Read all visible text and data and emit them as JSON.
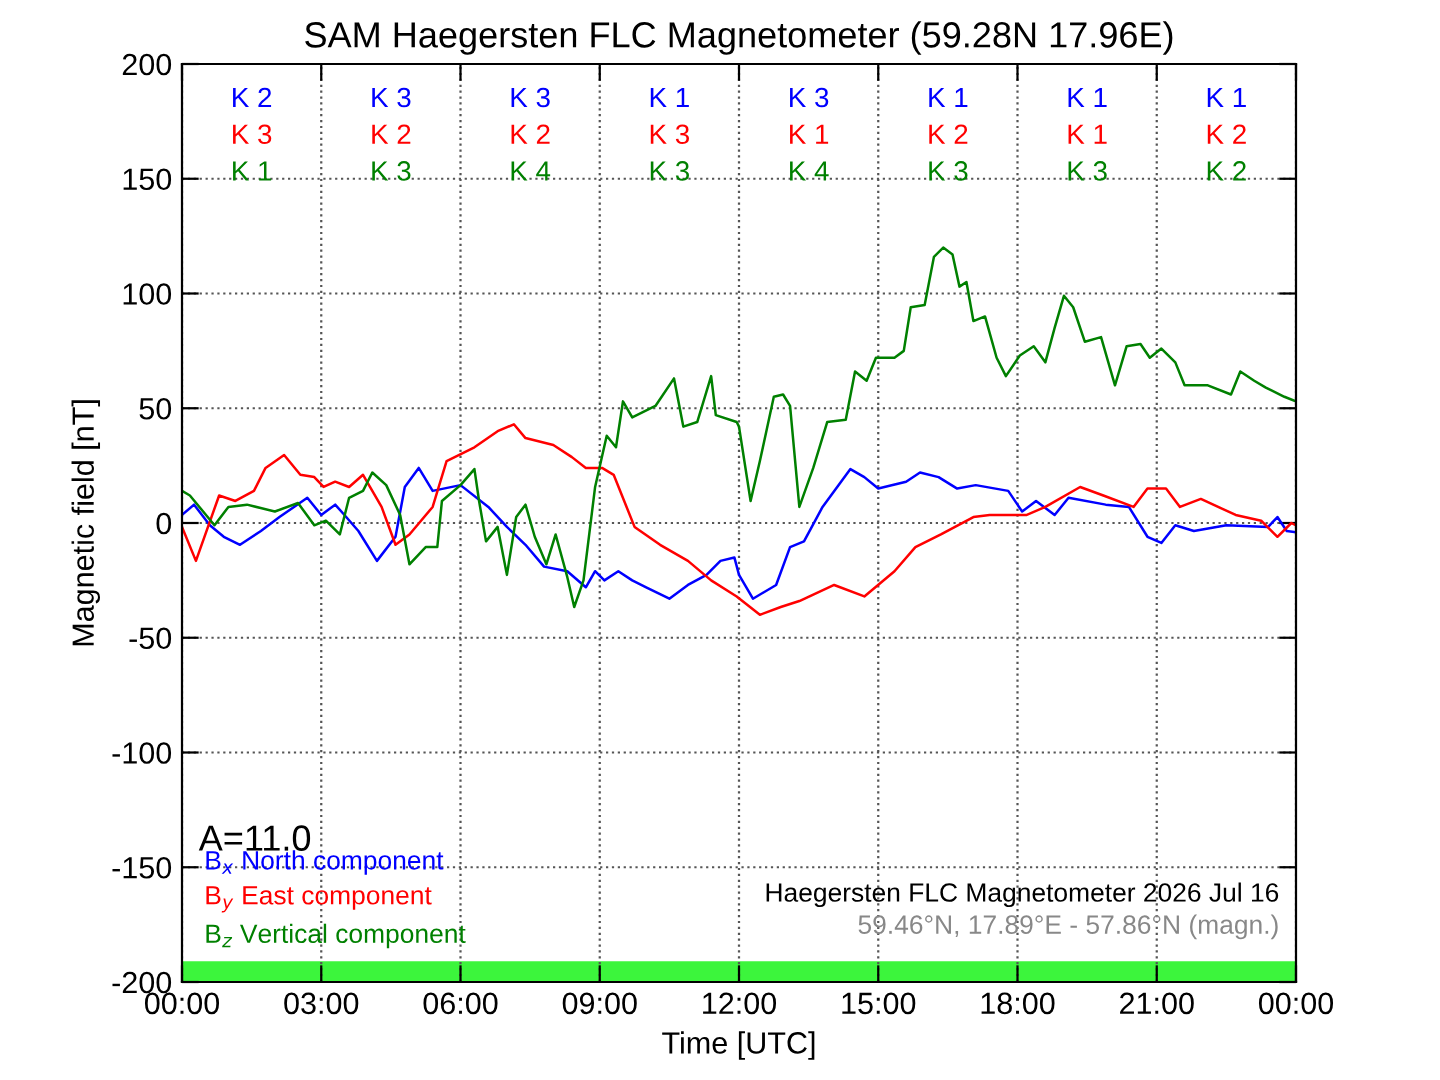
{
  "chart_data": {
    "type": "line",
    "title": "SAM Haegersten FLC Magnetometer (59.28N 17.96E)",
    "xlabel": "Time [UTC]",
    "ylabel": "Magnetic field [nT]",
    "xlim": [
      0,
      24
    ],
    "xticks": [
      {
        "value": 0,
        "label": "00:00"
      },
      {
        "value": 3,
        "label": "03:00"
      },
      {
        "value": 6,
        "label": "06:00"
      },
      {
        "value": 9,
        "label": "09:00"
      },
      {
        "value": 12,
        "label": "12:00"
      },
      {
        "value": 15,
        "label": "15:00"
      },
      {
        "value": 18,
        "label": "18:00"
      },
      {
        "value": 21,
        "label": "21:00"
      },
      {
        "value": 24,
        "label": "00:00"
      }
    ],
    "ylim": [
      -200,
      200
    ],
    "yticks": [
      -200,
      -150,
      -100,
      -50,
      0,
      50,
      100,
      150,
      200
    ],
    "grid": true,
    "legend": "bottom left",
    "line_style": "solid",
    "series": [
      {
        "name": "B$_{x}$ North component",
        "color": "#0000ff",
        "x": [
          0,
          0.26,
          0.6,
          0.9,
          1.25,
          1.7,
          2.1,
          2.7,
          3.0,
          3.3,
          3.5,
          3.8,
          4.2,
          4.6,
          4.8,
          5.1,
          5.4,
          6.0,
          6.6,
          7.0,
          7.4,
          7.8,
          8.3,
          8.7,
          8.9,
          9.1,
          9.4,
          9.7,
          10.0,
          10.5,
          10.9,
          11.3,
          11.6,
          11.9,
          12.0,
          12.3,
          12.8,
          13.1,
          13.4,
          13.8,
          14.4,
          14.7,
          15.0,
          15.6,
          15.9,
          16.3,
          16.7,
          17.1,
          17.8,
          18.1,
          18.4,
          18.8,
          19.1,
          19.9,
          20.4,
          20.8,
          21.1,
          21.4,
          21.8,
          22.5,
          23.4,
          23.6,
          23.8,
          24.0
        ],
        "values": [
          3.5,
          8,
          -1,
          -6,
          -9.5,
          -3.5,
          2.6,
          11,
          3.5,
          8,
          3.5,
          -3.5,
          -16.5,
          -6,
          15.7,
          24,
          14,
          16.5,
          7,
          -1.7,
          -9.5,
          -19,
          -21,
          -28,
          -21,
          -25,
          -21,
          -25,
          -28,
          -33,
          -27,
          -22.6,
          -16.5,
          -15,
          -22.6,
          -33,
          -27,
          -10.5,
          -8,
          7,
          23.5,
          20,
          15,
          18,
          22,
          20,
          15,
          16.5,
          14,
          5,
          9.6,
          3.5,
          11,
          8,
          7,
          -6,
          -8.7,
          -1,
          -3.5,
          -1,
          -1.7,
          2.6,
          -3.5,
          -4
        ]
      },
      {
        "name": "B$_{y}$ East component",
        "color": "#ff0000",
        "x": [
          0,
          0.3,
          0.8,
          1.15,
          1.55,
          1.8,
          2.2,
          2.55,
          2.85,
          3.05,
          3.3,
          3.6,
          3.9,
          4.05,
          4.3,
          4.6,
          4.9,
          5.4,
          5.7,
          6.3,
          6.8,
          7.15,
          7.4,
          8.0,
          8.4,
          8.7,
          9.05,
          9.3,
          9.75,
          10.3,
          10.9,
          11.4,
          11.95,
          12.45,
          12.9,
          13.3,
          14.05,
          14.7,
          15.35,
          15.8,
          16.35,
          17.05,
          17.4,
          18.2,
          18.6,
          19.35,
          19.85,
          20.5,
          20.8,
          21.2,
          21.5,
          21.95,
          22.7,
          23.25,
          23.6,
          23.9,
          24.0
        ],
        "values": [
          -1.7,
          -16.5,
          12,
          9.6,
          14,
          24,
          29.6,
          21,
          20,
          15.7,
          18,
          15.7,
          21,
          15.7,
          7,
          -9.5,
          -5,
          7,
          27,
          33,
          40,
          43,
          37,
          34,
          28.7,
          24,
          24,
          21,
          -1.7,
          -9.5,
          -16.5,
          -25,
          -32,
          -40,
          -36.6,
          -34,
          -27,
          -32,
          -21,
          -10.5,
          -5,
          2.6,
          3.5,
          3.5,
          7,
          15.7,
          12,
          7,
          15,
          15,
          7,
          10.5,
          3.5,
          1,
          -6,
          0,
          -1
        ]
      },
      {
        "name": "B$_{z}$ Vertical component",
        "color": "#008000",
        "x": [
          0,
          0.17,
          0.7,
          1.0,
          1.4,
          2.0,
          2.5,
          2.85,
          3.1,
          3.4,
          3.6,
          3.9,
          4.1,
          4.4,
          4.7,
          4.9,
          5.25,
          5.5,
          5.6,
          6.0,
          6.3,
          6.4,
          6.55,
          6.8,
          7.0,
          7.2,
          7.4,
          7.6,
          7.85,
          8.05,
          8.3,
          8.45,
          8.65,
          8.9,
          9.15,
          9.35,
          9.5,
          9.7,
          10.2,
          10.6,
          10.8,
          11.1,
          11.4,
          11.5,
          11.95,
          12.0,
          12.25,
          12.45,
          12.75,
          12.95,
          13.1,
          13.3,
          13.6,
          13.9,
          14.3,
          14.5,
          14.75,
          14.95,
          15.35,
          15.55,
          15.7,
          16.0,
          16.2,
          16.4,
          16.6,
          16.75,
          16.9,
          17.05,
          17.3,
          17.55,
          17.75,
          18.05,
          18.35,
          18.6,
          18.8,
          19.0,
          19.2,
          19.45,
          19.8,
          20.1,
          20.35,
          20.65,
          20.85,
          21.1,
          21.4,
          21.6,
          22.1,
          22.6,
          22.8,
          23.1,
          23.35,
          23.75,
          24.0
        ],
        "values": [
          14,
          12,
          -1,
          7,
          8,
          5,
          8.7,
          -1,
          1,
          -5,
          11,
          14,
          22,
          16.5,
          3.5,
          -18,
          -10.5,
          -10.5,
          9.6,
          16.5,
          23.5,
          9.6,
          -8,
          -1.7,
          -22.6,
          2.6,
          8,
          -6,
          -18,
          -5,
          -23.5,
          -36.6,
          -25,
          15.7,
          38,
          33,
          53,
          46,
          51,
          63,
          42,
          44,
          64,
          47,
          44,
          42,
          9.6,
          27,
          55,
          56,
          51,
          7,
          24,
          44,
          45,
          66,
          62,
          72,
          72,
          75,
          94,
          95,
          116,
          120,
          117,
          103,
          105,
          88,
          90,
          72,
          64,
          73,
          77,
          70,
          85,
          99,
          94,
          79,
          81,
          60,
          77,
          78,
          72,
          76,
          70,
          60,
          60,
          56,
          66,
          62,
          59,
          55,
          53
        ]
      }
    ],
    "bands": [
      {
        "axis": "y",
        "from": -200,
        "to": -191,
        "color": "#3cf53c"
      }
    ],
    "annotations": [
      "K 2",
      "K 3",
      "K 3",
      "K 1",
      "K 3",
      "K 1",
      "K 1",
      "K 1",
      "K 3",
      "K 2",
      "K 2",
      "K 3",
      "K 1",
      "K 2",
      "K 1",
      "K 2",
      "K 1",
      "K 3",
      "K 4",
      "K 3",
      "K 4",
      "K 3",
      "K 3",
      "K 2",
      "A=11.0",
      "Haegersten FLC Magnetometer 2026 Jul 16",
      "59.46°N, 17.89°E - 57.86°N (magn.)"
    ]
  }
}
